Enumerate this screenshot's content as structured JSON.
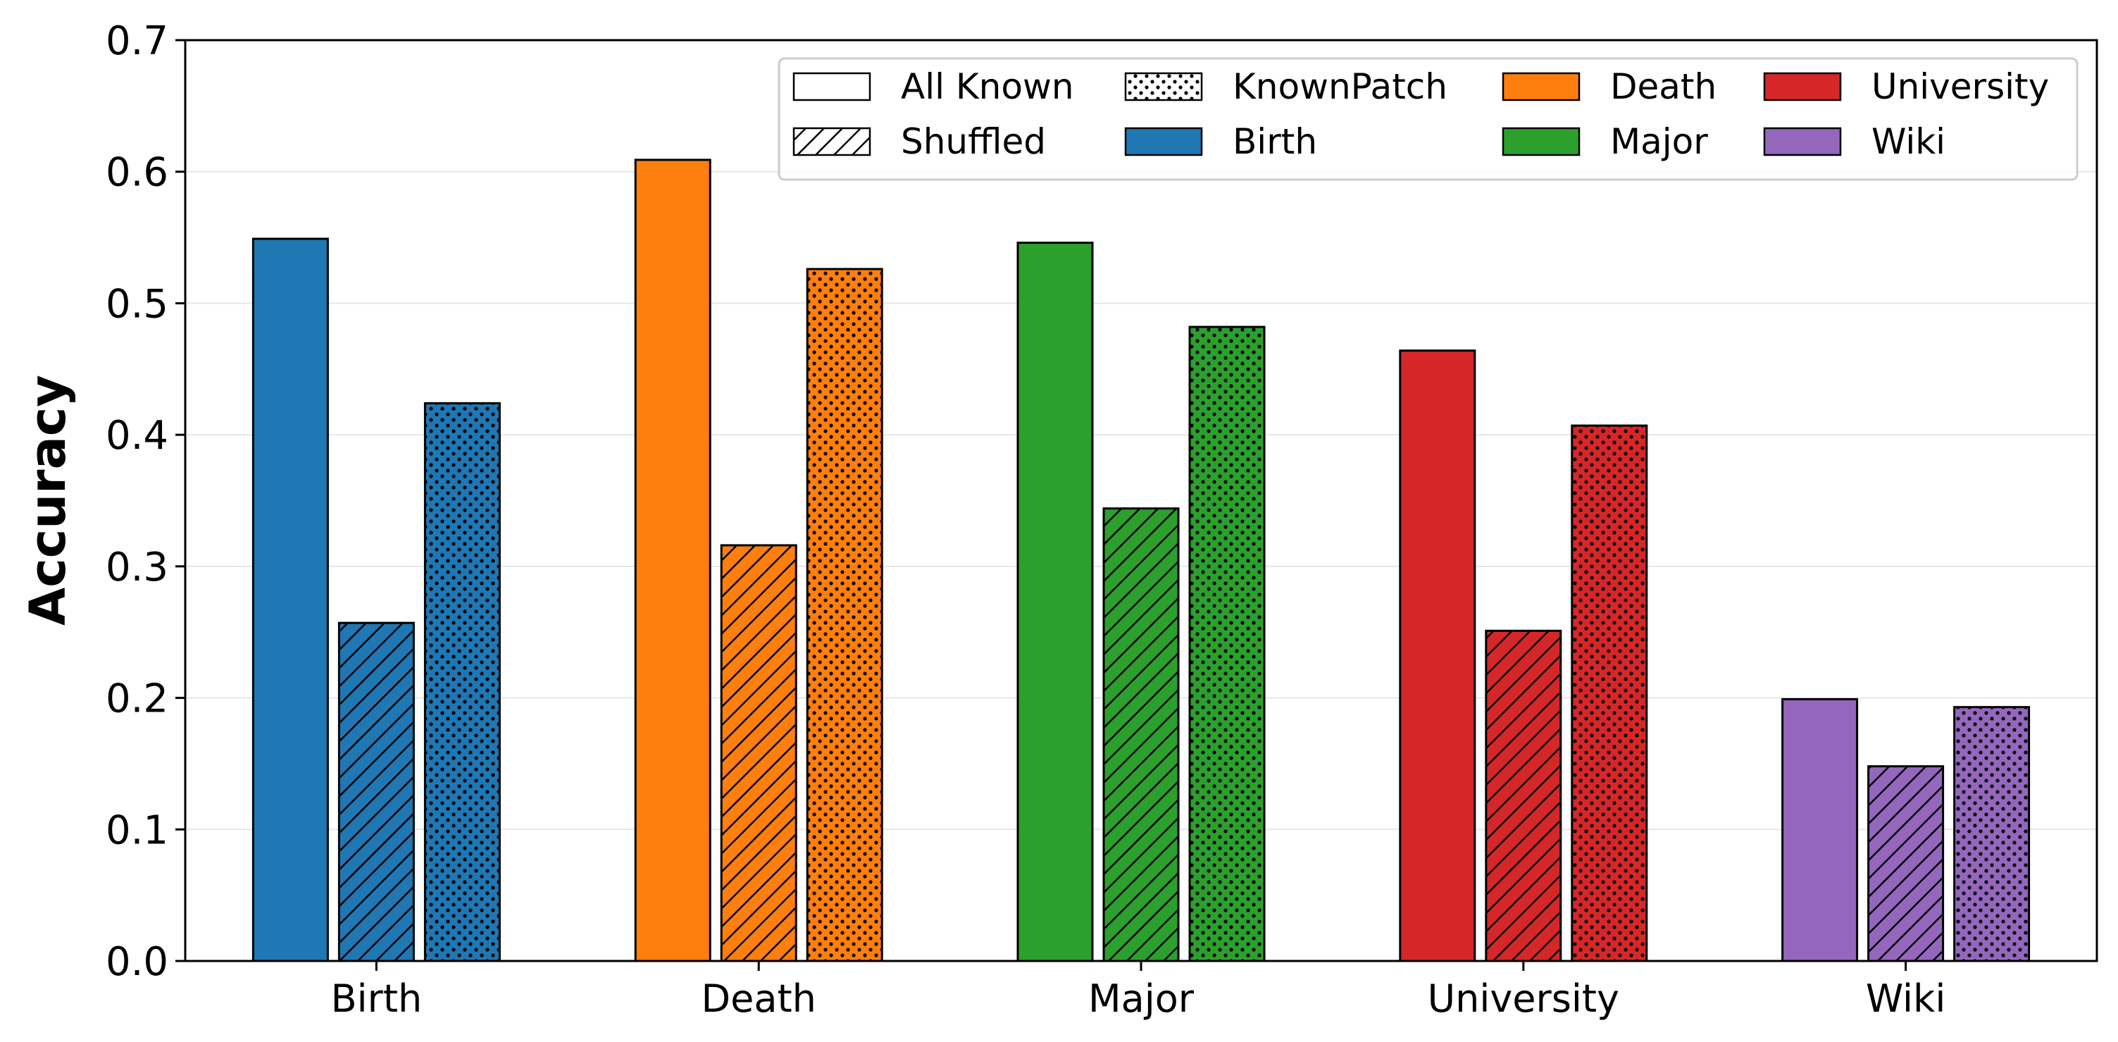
{
  "chart_data": {
    "type": "bar",
    "title": "",
    "xlabel": "",
    "ylabel": "Accuracy",
    "ylim": [
      0,
      0.7
    ],
    "yticks": [
      0.0,
      0.1,
      0.2,
      0.3,
      0.4,
      0.5,
      0.6,
      0.7
    ],
    "ytick_labels": [
      "0.0",
      "0.1",
      "0.2",
      "0.3",
      "0.4",
      "0.5",
      "0.6",
      "0.7"
    ],
    "grid": "horizontal",
    "categories": [
      "Birth",
      "Death",
      "Major",
      "University",
      "Wiki"
    ],
    "category_colors": [
      "#1f77b4",
      "#ff7f0e",
      "#2ca02c",
      "#d62728",
      "#9467bd"
    ],
    "series": [
      {
        "name": "All Known",
        "pattern": "solid",
        "values": [
          0.549,
          0.609,
          0.546,
          0.464,
          0.199
        ]
      },
      {
        "name": "Shuffled",
        "pattern": "hatch",
        "values": [
          0.257,
          0.316,
          0.344,
          0.251,
          0.148
        ]
      },
      {
        "name": "KnownPatch",
        "pattern": "dots",
        "values": [
          0.424,
          0.526,
          0.482,
          0.407,
          0.193
        ]
      }
    ],
    "legend": {
      "position": "top-right",
      "entries": [
        {
          "label": "All Known",
          "pattern": "solid",
          "color": "#ffffff"
        },
        {
          "label": "KnownPatch",
          "pattern": "dots",
          "color": "#ffffff"
        },
        {
          "label": "Death",
          "pattern": "solid",
          "color": "#ff7f0e"
        },
        {
          "label": "University",
          "pattern": "solid",
          "color": "#d62728"
        },
        {
          "label": "Shuffled",
          "pattern": "hatch",
          "color": "#ffffff"
        },
        {
          "label": "Birth",
          "pattern": "solid",
          "color": "#1f77b4"
        },
        {
          "label": "Major",
          "pattern": "solid",
          "color": "#2ca02c"
        },
        {
          "label": "Wiki",
          "pattern": "solid",
          "color": "#9467bd"
        }
      ]
    }
  }
}
